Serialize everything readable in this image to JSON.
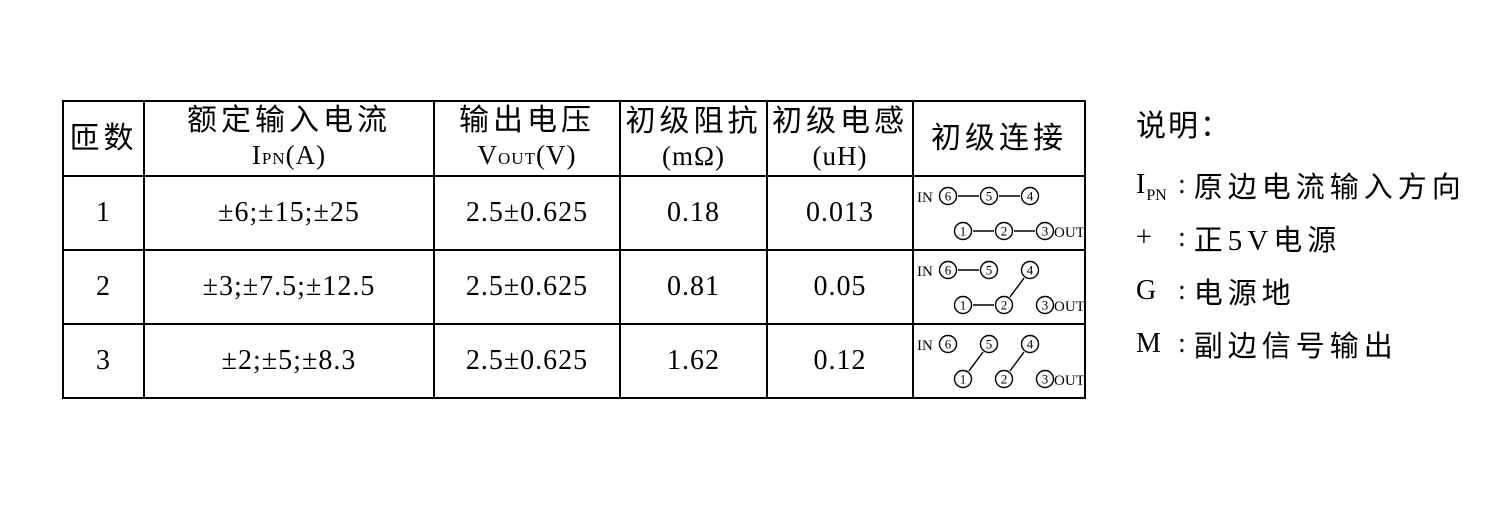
{
  "table": {
    "headers": {
      "turns": "匝数",
      "input_current": {
        "title": "额定输入电流",
        "sym": "I",
        "sym_sub": "PN",
        "sym_unit": "(A)"
      },
      "output_voltage": {
        "title": "输出电压",
        "sym": "V",
        "sym_sub": "OUT",
        "sym_unit": "(V)"
      },
      "primary_resistance": {
        "title": "初级阻抗",
        "unit": "(mΩ)"
      },
      "primary_inductance": {
        "title": "初级电感",
        "unit": "(uH)"
      },
      "primary_connection": {
        "title": "初级连接"
      }
    },
    "rows": [
      {
        "turns": "1",
        "input_current": "±6;±15;±25",
        "output_voltage": "2.5±0.625",
        "primary_resistance": "0.18",
        "primary_inductance": "0.013",
        "connection": {
          "in_label": "IN",
          "out_label": "OUT",
          "top_pins": [
            "6",
            "5",
            "4"
          ],
          "bottom_pins": [
            "1",
            "2",
            "3"
          ],
          "links": [
            [
              "6",
              "5"
            ],
            [
              "5",
              "4"
            ],
            [
              "1",
              "2"
            ],
            [
              "2",
              "3"
            ]
          ]
        }
      },
      {
        "turns": "2",
        "input_current": "±3;±7.5;±12.5",
        "output_voltage": "2.5±0.625",
        "primary_resistance": "0.81",
        "primary_inductance": "0.05",
        "connection": {
          "in_label": "IN",
          "out_label": "OUT",
          "top_pins": [
            "6",
            "5",
            "4"
          ],
          "bottom_pins": [
            "1",
            "2",
            "3"
          ],
          "links": [
            [
              "6",
              "5"
            ],
            [
              "1",
              "2"
            ],
            [
              "4",
              "2"
            ]
          ]
        }
      },
      {
        "turns": "3",
        "input_current": "±2;±5;±8.3",
        "output_voltage": "2.5±0.625",
        "primary_resistance": "1.62",
        "primary_inductance": "0.12",
        "connection": {
          "in_label": "IN",
          "out_label": "OUT",
          "top_pins": [
            "6",
            "5",
            "4"
          ],
          "bottom_pins": [
            "1",
            "2",
            "3"
          ],
          "links": [
            [
              "5",
              "1"
            ],
            [
              "4",
              "2"
            ]
          ]
        }
      }
    ]
  },
  "legend": {
    "title": "说明：",
    "items": [
      {
        "sym": "I",
        "sym_sub": "PN",
        "sep": ":",
        "desc": "原边电流输入方向"
      },
      {
        "sym": "+",
        "sym_sub": "",
        "sep": ":",
        "desc": "正5V电源"
      },
      {
        "sym": "G",
        "sym_sub": "",
        "sep": ":",
        "desc": "电源地"
      },
      {
        "sym": "M",
        "sym_sub": "",
        "sep": ":",
        "desc": "副边信号输出"
      }
    ]
  }
}
